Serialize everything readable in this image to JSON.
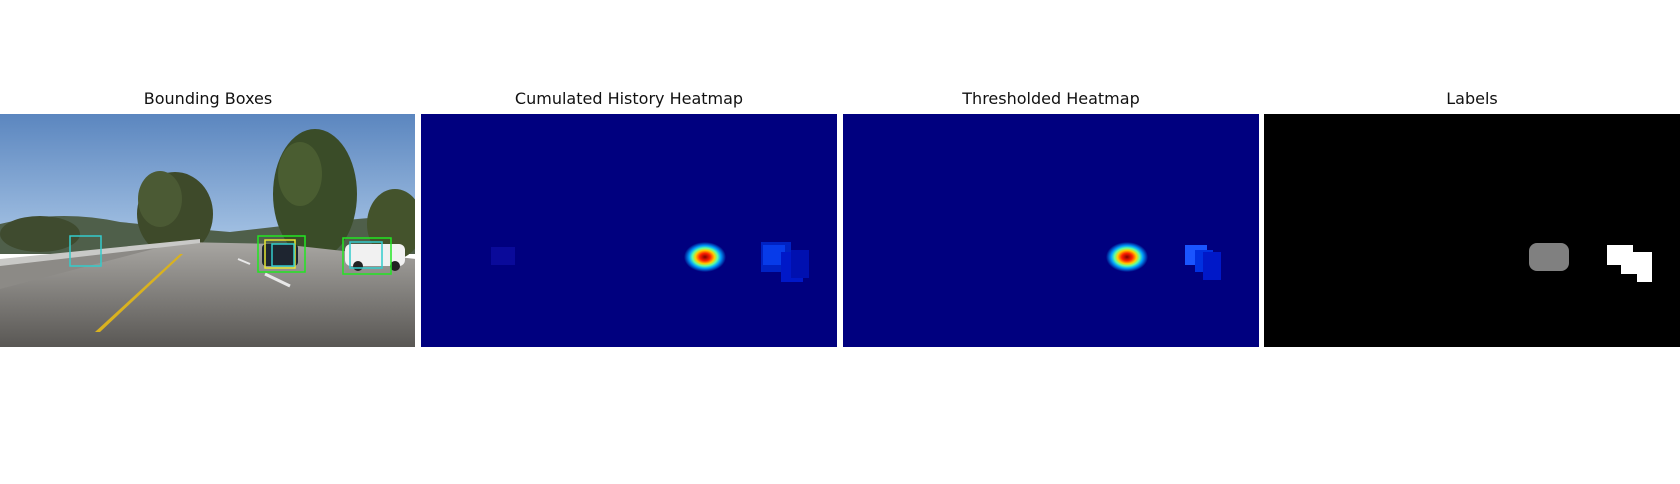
{
  "panels": [
    {
      "title": "Bounding Boxes"
    },
    {
      "title": "Cumulated History Heatmap"
    },
    {
      "title": "Thresholded Heatmap"
    },
    {
      "title": "Labels"
    }
  ],
  "colors": {
    "background": "#ffffff",
    "heatmap_low": "#00007f",
    "labels_background": "#000000",
    "box_green": "#22e622",
    "box_cyan": "#33cccc",
    "box_yellow": "#e6e633"
  }
}
